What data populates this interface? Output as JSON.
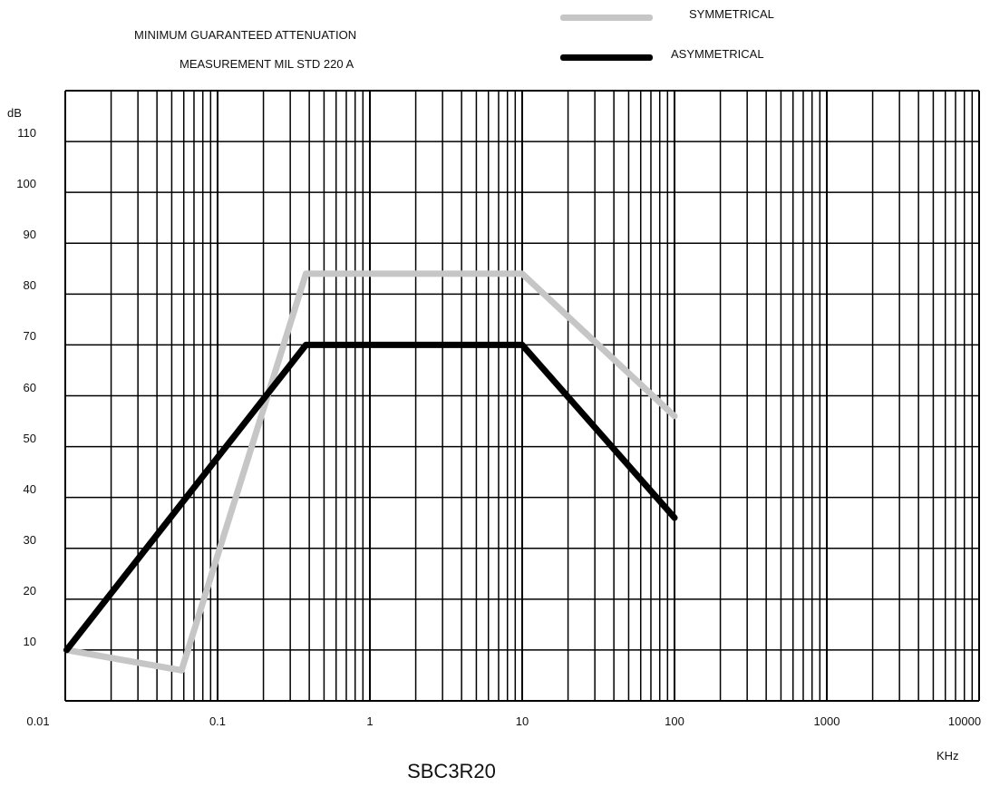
{
  "titles": {
    "line1": "MINIMUM GUARANTEED ATTENUATION",
    "line2": "MEASUREMENT MIL STD 220 A"
  },
  "footer": "SBC3R20",
  "colors": {
    "symmetrical": "#c6c6c6",
    "asymmetrical": "#000000",
    "grid": "#000000"
  },
  "chart_data": {
    "type": "line",
    "xscale": "log",
    "xlim": [
      0.01,
      10000
    ],
    "ylim": [
      0,
      120
    ],
    "xlabel": "KHz",
    "ylabel": "dB",
    "grid": true,
    "legend": "top-right",
    "yticks": [
      "10",
      "20",
      "30",
      "40",
      "50",
      "60",
      "70",
      "80",
      "90",
      "100",
      "110"
    ],
    "xticks": [
      "0.01",
      "0.1",
      "1",
      "10",
      "100",
      "1000",
      "10000"
    ],
    "series": [
      {
        "name": "SYMMETRICAL",
        "x": [
          0.0102,
          0.058,
          0.38,
          10,
          100
        ],
        "y": [
          10,
          6,
          84,
          84,
          56
        ]
      },
      {
        "name": "ASYMMETRICAL",
        "x": [
          0.0102,
          0.38,
          10,
          100
        ],
        "y": [
          10,
          70,
          70,
          36
        ]
      }
    ]
  }
}
